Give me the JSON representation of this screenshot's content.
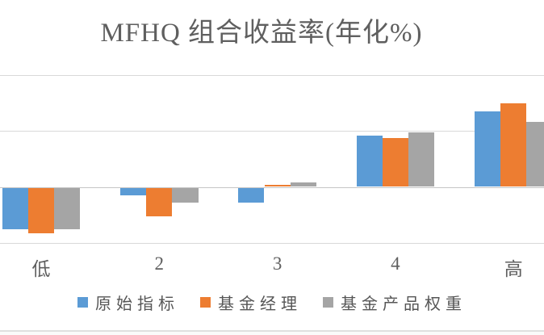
{
  "title": "MFHQ 组合收益率(年化%)",
  "chart_data": {
    "type": "bar",
    "title": "MFHQ 组合收益率(年化%)",
    "categories": [
      "低",
      "2",
      "3",
      "4",
      "高"
    ],
    "series": [
      {
        "name": "原始指标",
        "color": "#5B9BD5",
        "values": [
          -0.74,
          -0.14,
          -0.26,
          0.91,
          1.34
        ]
      },
      {
        "name": "基金经理",
        "color": "#ED7D31",
        "values": [
          -0.82,
          -0.51,
          0.03,
          0.87,
          1.49
        ]
      },
      {
        "name": "基金产品权重",
        "color": "#A5A5A5",
        "values": [
          -0.74,
          -0.26,
          0.08,
          0.97,
          1.16
        ]
      }
    ],
    "xlabel": "",
    "ylabel": "",
    "ylim": [
      -1.2,
      2.1
    ],
    "gridline_values": [
      2,
      1,
      0,
      -1
    ],
    "y_axis_tick_labels_visible": false,
    "grid": true,
    "legend_position": "bottom"
  },
  "colors": {
    "background": "#ffffff",
    "text": "#5f5f5f",
    "gridline": "#d9d9d9",
    "axis": "#c6c6c6",
    "divider": "#dfdfdf"
  }
}
